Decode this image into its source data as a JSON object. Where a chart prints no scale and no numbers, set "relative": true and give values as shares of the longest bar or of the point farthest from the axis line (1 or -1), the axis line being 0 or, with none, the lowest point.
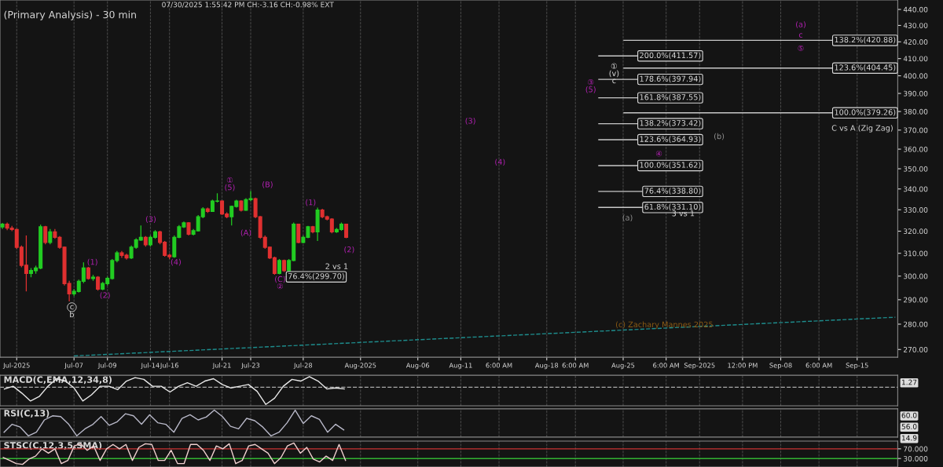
{
  "chart_data": [
    {
      "type": "candlestick",
      "title": "(Primary Analysis) - 30 min",
      "subtitle": "07/30/2025 1:55:42 PM CH:-3.16 CH:-0.98% EXT",
      "log": "y",
      "ylim": [
        267,
        446
      ],
      "yticks": [
        {
          "value": 270,
          "label": "270.00"
        },
        {
          "value": 280,
          "label": "280.00"
        },
        {
          "value": 290,
          "label": "290.00"
        },
        {
          "value": 300,
          "label": "300.00"
        },
        {
          "value": 310,
          "label": "310.00"
        },
        {
          "value": 320,
          "label": "320.00"
        },
        {
          "value": 330,
          "label": "330.00"
        },
        {
          "value": 340,
          "label": "340.00"
        },
        {
          "value": 350,
          "label": "350.00"
        },
        {
          "value": 360,
          "label": "360.00"
        },
        {
          "value": 370,
          "label": "370.00"
        },
        {
          "value": 380,
          "label": "380.00"
        },
        {
          "value": 390,
          "label": "390.00"
        },
        {
          "value": 400,
          "label": "400.00"
        },
        {
          "value": 410,
          "label": "410.00"
        },
        {
          "value": 420,
          "label": "420.00"
        },
        {
          "value": 430,
          "label": "430.00"
        },
        {
          "value": 440,
          "label": "440.00"
        }
      ],
      "grid": "x",
      "categories": [
        null,
        null,
        null,
        "Jul-2025",
        null,
        null,
        null,
        null,
        null,
        null,
        null,
        null,
        null,
        null,
        null,
        "Jul-07",
        null,
        null,
        null,
        null,
        null,
        null,
        "Jul-09",
        null,
        null,
        null,
        null,
        null,
        null,
        null,
        null,
        "Jul-14",
        null,
        null,
        null,
        "Jul-16",
        null,
        null,
        null,
        null,
        null,
        null,
        null,
        null,
        null,
        null,
        "Jul-21",
        null,
        null,
        null,
        null,
        null,
        "Jul-23",
        null,
        null,
        null,
        null,
        null,
        null,
        null,
        null,
        null,
        null,
        "Jul-28",
        null,
        null,
        null,
        null,
        null,
        null,
        null,
        null,
        null,
        null,
        null,
        "Aug-2025",
        null,
        null,
        null,
        null,
        null,
        null,
        null,
        null,
        null,
        null,
        null,
        "Aug-06",
        null,
        null,
        null,
        null,
        null,
        null,
        null,
        null,
        "Aug-11",
        null,
        null,
        null,
        null,
        null,
        null,
        null,
        "6:00 AM",
        null,
        null,
        null,
        null,
        null,
        null,
        null,
        null,
        null,
        "Aug-18",
        null,
        null,
        null,
        null,
        null,
        "6:00 AM",
        null,
        null,
        null,
        null,
        null,
        null,
        null,
        null,
        null,
        "Aug-25",
        null,
        null,
        null,
        null,
        null,
        null,
        null,
        null,
        "6:00 AM",
        null,
        null,
        null,
        null,
        null,
        null,
        "Sep-2025",
        null,
        null,
        null,
        null,
        null,
        null,
        null,
        null,
        "12:00 PM",
        null,
        null,
        null,
        null,
        null,
        null,
        null,
        "Sep-08",
        null,
        null,
        null,
        null,
        null,
        null,
        null,
        "6:00 AM",
        null,
        null,
        null,
        null,
        null,
        null,
        null,
        "Sep-15",
        null,
        null,
        null,
        null,
        null,
        null,
        null,
        null
      ],
      "ohlc": [
        [
          322.0,
          323.8,
          321.0,
          323.2
        ],
        [
          323.2,
          324.0,
          320.5,
          321.4
        ],
        [
          321.4,
          322.5,
          320.0,
          320.8
        ],
        [
          320.8,
          321.2,
          312.0,
          312.7
        ],
        [
          312.7,
          313.5,
          303.8,
          304.7
        ],
        [
          304.7,
          318.0,
          293.5,
          301.2
        ],
        [
          301.2,
          303.5,
          299.5,
          302.4
        ],
        [
          302.4,
          304.5,
          301.0,
          303.5
        ],
        [
          303.5,
          323.0,
          303.0,
          322.0
        ],
        [
          322.0,
          322.5,
          314.0,
          314.9
        ],
        [
          314.9,
          321.0,
          314.0,
          319.7
        ],
        [
          319.7,
          321.0,
          316.5,
          317.2
        ],
        [
          317.2,
          317.8,
          312.0,
          312.7
        ],
        [
          312.7,
          313.0,
          296.0,
          296.8
        ],
        [
          296.8,
          298.0,
          289.3,
          292.5
        ],
        [
          292.5,
          294.5,
          291.5,
          293.5
        ],
        [
          293.5,
          298.5,
          293.0,
          297.8
        ],
        [
          297.8,
          306.0,
          297.0,
          303.5
        ],
        [
          303.5,
          304.0,
          298.5,
          299.0
        ],
        [
          299.0,
          300.5,
          298.0,
          299.5
        ],
        [
          299.5,
          300.0,
          293.8,
          294.5
        ],
        [
          294.5,
          297.5,
          294.0,
          296.8
        ],
        [
          296.8,
          299.8,
          296.0,
          299.0
        ],
        [
          299.0,
          307.5,
          298.5,
          306.8
        ],
        [
          306.8,
          311.0,
          306.0,
          310.2
        ],
        [
          310.2,
          311.0,
          308.0,
          309.1
        ],
        [
          309.1,
          309.8,
          307.2,
          308.0
        ],
        [
          308.0,
          313.5,
          307.5,
          312.7
        ],
        [
          312.7,
          316.8,
          312.0,
          316.0
        ],
        [
          316.0,
          322.6,
          315.5,
          317.2
        ],
        [
          317.2,
          317.8,
          313.0,
          313.8
        ],
        [
          313.8,
          318.0,
          313.0,
          317.2
        ],
        [
          317.2,
          320.5,
          316.5,
          319.7
        ],
        [
          319.7,
          320.2,
          314.0,
          314.9
        ],
        [
          314.9,
          315.5,
          308.5,
          309.1
        ],
        [
          309.1,
          309.8,
          307.5,
          308.5
        ],
        [
          308.5,
          318.0,
          308.0,
          317.2
        ],
        [
          317.2,
          322.8,
          316.8,
          322.0
        ],
        [
          322.0,
          324.5,
          321.5,
          323.8
        ],
        [
          323.8,
          324.2,
          318.0,
          318.6
        ],
        [
          318.6,
          321.0,
          318.0,
          320.2
        ],
        [
          320.2,
          327.5,
          319.8,
          326.7
        ],
        [
          326.7,
          331.2,
          326.0,
          330.4
        ],
        [
          330.4,
          331.0,
          328.5,
          329.2
        ],
        [
          329.2,
          334.8,
          329.0,
          334.1
        ],
        [
          334.1,
          337.9,
          333.5,
          334.1
        ],
        [
          334.1,
          334.5,
          327.5,
          328.0
        ],
        [
          328.0,
          328.8,
          326.0,
          326.7
        ],
        [
          326.7,
          332.0,
          322.6,
          331.6
        ],
        [
          331.6,
          334.8,
          331.0,
          334.1
        ],
        [
          334.1,
          334.5,
          329.2,
          329.8
        ],
        [
          329.8,
          335.5,
          329.5,
          334.8
        ],
        [
          334.8,
          339.0,
          334.0,
          335.3
        ],
        [
          335.3,
          335.8,
          326.0,
          326.7
        ],
        [
          326.7,
          327.0,
          316.5,
          317.2
        ],
        [
          317.2,
          318.0,
          312.0,
          312.7
        ],
        [
          312.7,
          313.0,
          307.5,
          308.0
        ],
        [
          308.0,
          308.5,
          300.6,
          301.2
        ],
        [
          301.2,
          307.5,
          300.8,
          306.8
        ],
        [
          306.8,
          307.2,
          301.8,
          302.4
        ],
        [
          302.4,
          307.5,
          302.0,
          306.8
        ],
        [
          306.8,
          324.0,
          306.5,
          323.2
        ],
        [
          323.2,
          323.5,
          314.5,
          314.9
        ],
        [
          314.9,
          318.0,
          314.5,
          317.2
        ],
        [
          317.2,
          322.5,
          316.8,
          322.0
        ],
        [
          322.0,
          322.5,
          319.0,
          319.7
        ],
        [
          319.7,
          331.0,
          315.5,
          329.8
        ],
        [
          329.8,
          330.5,
          326.0,
          326.7
        ],
        [
          326.7,
          327.2,
          325.0,
          325.6
        ],
        [
          325.6,
          326.0,
          319.0,
          319.7
        ],
        [
          319.7,
          321.5,
          319.2,
          320.8
        ],
        [
          320.8,
          324.0,
          320.2,
          323.2
        ],
        [
          323.2,
          323.5,
          316.8,
          317.2
        ],
        null,
        null,
        null,
        null,
        null,
        null,
        null,
        null,
        null,
        null,
        null,
        null,
        null,
        null,
        null,
        null,
        null,
        null,
        null,
        null,
        null,
        null,
        null,
        null,
        null,
        null,
        null,
        null,
        null,
        null,
        null,
        null,
        null,
        null,
        null,
        null,
        null,
        null,
        null,
        null,
        null,
        null,
        null,
        null,
        null,
        null,
        null,
        null,
        null,
        null,
        null,
        null,
        null,
        null,
        null,
        null,
        null,
        null,
        null,
        null,
        null,
        null,
        null,
        null,
        null,
        null,
        null,
        null,
        null,
        null,
        null,
        null,
        null,
        null,
        null,
        null,
        null,
        null,
        null,
        null,
        null,
        null,
        null,
        null,
        null,
        null,
        null,
        null,
        null,
        null,
        null,
        null,
        null,
        null,
        null,
        null,
        null,
        null,
        null,
        null,
        null,
        null,
        null,
        null,
        null,
        null,
        null,
        null,
        null,
        null,
        null,
        null,
        null,
        null,
        null
      ],
      "series": [
        {
          "type": "line",
          "color": "#1e8c8c",
          "line_style": "dashed",
          "values": [
            null,
            null,
            null,
            null,
            null,
            null,
            null,
            null,
            null,
            null,
            null,
            null,
            null,
            null,
            null,
            267.5,
            null,
            null,
            null,
            null,
            null,
            null,
            null,
            null,
            null,
            null,
            null,
            null,
            null,
            null,
            null,
            null,
            null,
            null,
            null,
            null,
            null,
            null,
            null,
            null,
            null,
            null,
            null,
            null,
            null,
            null,
            null,
            null,
            null,
            null,
            null,
            null,
            null,
            null,
            null,
            null,
            null,
            null,
            null,
            null,
            null,
            null,
            null,
            null,
            null,
            null,
            null,
            null,
            null,
            null,
            null,
            null,
            null,
            null,
            null,
            null,
            null,
            null,
            null,
            null,
            null,
            null,
            null,
            null,
            null,
            null,
            null,
            null,
            null,
            null,
            null,
            null,
            null,
            null,
            null,
            null,
            null,
            null,
            null,
            null,
            null,
            null,
            null,
            null,
            null,
            null,
            null,
            null,
            null,
            null,
            null,
            null,
            null,
            null,
            null,
            null,
            null,
            null,
            null,
            null,
            null,
            null,
            null,
            null,
            null,
            null,
            null,
            null,
            null,
            null,
            null,
            null,
            null,
            null,
            null,
            null,
            null,
            null,
            null,
            null,
            null,
            null,
            null,
            null,
            null,
            null,
            null,
            null,
            null,
            null,
            null,
            null,
            null,
            null,
            null,
            null,
            null,
            null,
            null,
            null,
            null,
            null,
            null,
            null,
            null,
            null,
            null,
            null,
            null,
            null,
            null,
            null,
            null,
            null,
            null,
            null,
            null,
            null,
            null,
            null,
            null,
            null,
            null,
            null,
            null,
            null,
            null,
            282.8
          ]
        }
      ],
      "ref_lines": [
        {
          "axis": "y",
          "value": 299.7,
          "label": "76.4%(299.70)"
        },
        {
          "axis": "y",
          "value": 411.57,
          "label": "200.0%(411.57)"
        },
        {
          "axis": "y",
          "value": 397.94,
          "label": "178.6%(397.94)"
        },
        {
          "axis": "y",
          "value": 387.55,
          "label": "161.8%(387.55)"
        },
        {
          "axis": "y",
          "value": 373.42,
          "label": "138.2%(373.42)"
        },
        {
          "axis": "y",
          "value": 364.93,
          "label": "123.6%(364.93)"
        },
        {
          "axis": "y",
          "value": 351.62,
          "label": "100.0%(351.62)"
        },
        {
          "axis": "y",
          "value": 338.8,
          "label": "76.4%(338.80)"
        },
        {
          "axis": "y",
          "value": 331.1,
          "label": "61.8%(331.10)"
        },
        {
          "axis": "y",
          "value": 420.88,
          "label": "138.2%(420.88)"
        },
        {
          "axis": "y",
          "value": 404.45,
          "label": "123.6%(404.45)"
        },
        {
          "axis": "y",
          "value": 379.26,
          "label": "100.0%(379.26)"
        }
      ],
      "annotations": [
        "c",
        "b",
        "(1)",
        "(2)",
        "(3)",
        "(4)",
        "①",
        "(5)",
        "(A)",
        "(B)",
        "(C)",
        "②",
        "(1)",
        "(2)",
        "2 vs 1",
        "(3)",
        "(4)",
        "③",
        "(5)",
        "①",
        "(v)",
        "c",
        "(a)",
        "④",
        "3 vs 1",
        "(b)",
        "(a)",
        "c",
        "⑤",
        "C vs A (Zig Zag)",
        "(c) Zachary Mannes 2025"
      ]
    },
    {
      "type": "line",
      "title": "MACD(C,EMA,12,34,8)",
      "relative": true,
      "tick_labels": false,
      "grid": "x",
      "ref_lines": [
        {
          "axis": "y",
          "value": 0,
          "color": "#aaaaaa",
          "line_style": "dashed"
        }
      ],
      "categories": [
        null,
        null,
        null,
        null,
        null,
        null,
        null,
        null,
        null,
        null,
        null,
        null,
        null,
        null,
        null,
        null,
        null,
        null,
        null,
        null,
        null,
        null,
        null,
        null,
        null,
        null,
        null,
        null,
        null,
        null,
        null,
        null,
        null,
        null,
        null,
        null,
        null,
        null,
        null,
        null,
        null,
        null,
        null,
        null,
        null,
        null,
        null,
        null,
        null,
        null,
        null,
        null,
        null,
        null,
        null,
        null,
        null,
        null,
        null,
        null,
        null,
        null,
        null,
        null,
        null,
        null,
        null,
        null,
        null,
        null,
        null,
        null,
        null,
        null,
        null,
        null,
        null,
        null,
        null,
        null,
        null,
        null,
        null,
        null,
        null,
        null,
        null,
        null,
        null,
        null,
        null,
        null,
        null,
        null,
        null,
        null,
        null,
        null,
        null,
        null,
        null,
        null,
        null
      ],
      "annotations": [
        "1.27"
      ],
      "series": [
        {
          "color": "#e8e8e8",
          "values": [
            -0.1,
            0.06,
            -0.34,
            -0.8,
            -0.54,
            0.06,
            0.5,
            0.36,
            -0.04,
            -0.8,
            -0.44,
            0.06,
            0.06,
            -0.14,
            0.36,
            0.56,
            0.46,
            0.06,
            0.06,
            -0.28,
            0.06,
            0.26,
            0.06,
            0.36,
            0.5,
            0.16,
            -0.04,
            0.06,
            0.16,
            -0.24,
            -1,
            -0.64,
            0.06,
            0.46,
            0.36,
            0.62,
            0.36,
            -0.1,
            -0.04,
            -0.1,
            null,
            null,
            null,
            null,
            null,
            null,
            null,
            null,
            null,
            null,
            null,
            null,
            null,
            null,
            null,
            null,
            null,
            null,
            null,
            null,
            null,
            null,
            null,
            null,
            null,
            null,
            null,
            null,
            null,
            null,
            null,
            null,
            null,
            null,
            null,
            null,
            null,
            null,
            null,
            null,
            null,
            null,
            null,
            null,
            null,
            null,
            null,
            null,
            null,
            null,
            null,
            null,
            null,
            null,
            null,
            null,
            null,
            null,
            null,
            null,
            null,
            null,
            null
          ]
        }
      ]
    },
    {
      "type": "line",
      "title": "RSI(C,13)",
      "relative": true,
      "tick_labels": false,
      "grid": "x",
      "categories": [
        null,
        null,
        null,
        null,
        null,
        null,
        null,
        null,
        null,
        null,
        null,
        null,
        null,
        null,
        null,
        null,
        null,
        null,
        null,
        null,
        null,
        null,
        null,
        null,
        null,
        null,
        null,
        null,
        null,
        null,
        null,
        null,
        null,
        null,
        null,
        null,
        null,
        null,
        null,
        null,
        null,
        null,
        null,
        null,
        null,
        null,
        null,
        null,
        null,
        null,
        null,
        null,
        null,
        null,
        null,
        null,
        null,
        null,
        null,
        null,
        null,
        null,
        null,
        null,
        null,
        null,
        null,
        null,
        null,
        null,
        null,
        null,
        null,
        null,
        null,
        null,
        null,
        null,
        null,
        null,
        null,
        null,
        null,
        null,
        null,
        null,
        null,
        null,
        null,
        null,
        null,
        null,
        null,
        null,
        null,
        null,
        null,
        null,
        null,
        null,
        null,
        null,
        null,
        null,
        null,
        null,
        null,
        null,
        null,
        null,
        null
      ],
      "annotations": [
        "60.0",
        "56.0",
        "14.9"
      ],
      "series": [
        {
          "color": "#b8b8c8",
          "values": [
            0.14,
            0.45,
            0.34,
            0,
            0.14,
            0.62,
            0.78,
            0.75,
            0.45,
            0,
            0.27,
            0.45,
            0.75,
            0.41,
            0.55,
            0.86,
            0.78,
            0.45,
            0.82,
            0.51,
            0.45,
            0.14,
            0.68,
            0.82,
            0.62,
            0.73,
            1,
            0.75,
            0.37,
            0.27,
            0.68,
            0.59,
            0.34,
            0,
            0.14,
            0.51,
            1,
            0.48,
            0.78,
            0.64,
            0.14,
            0.45,
            0.23,
            null,
            null,
            null,
            null,
            null,
            null,
            null,
            null,
            null,
            null,
            null,
            null,
            null,
            null,
            null,
            null,
            null,
            null,
            null,
            null,
            null,
            null,
            null,
            null,
            null,
            null,
            null,
            null,
            null,
            null,
            null,
            null,
            null,
            null,
            null,
            null,
            null,
            null,
            null,
            null,
            null,
            null,
            null,
            null,
            null,
            null,
            null,
            null,
            null,
            null,
            null,
            null,
            null,
            null,
            null,
            null,
            null,
            null,
            null,
            null,
            null,
            null,
            null,
            null,
            null,
            null,
            null,
            null
          ]
        }
      ]
    },
    {
      "type": "line",
      "title": "STSC(C,12,3,5,SMA)",
      "tick_labels": "y",
      "grid": "x",
      "categories": [
        null,
        null,
        null,
        null,
        null,
        null,
        null,
        null,
        null,
        null,
        null,
        null,
        null,
        null,
        null,
        null,
        null,
        null,
        null,
        null,
        null,
        null,
        null,
        null,
        null,
        null,
        null,
        null,
        null,
        null,
        null,
        null,
        null,
        null,
        null,
        null,
        null,
        null,
        null,
        null,
        null,
        null,
        null,
        null,
        null,
        null,
        null,
        null,
        null,
        null,
        null,
        null,
        null,
        null,
        null,
        null,
        null,
        null,
        null,
        null,
        null,
        null,
        null,
        null,
        null,
        null,
        null,
        null,
        null,
        null,
        null,
        null,
        null,
        null,
        null,
        null,
        null,
        null,
        null,
        null,
        null,
        null,
        null,
        null,
        null,
        null,
        null,
        null,
        null,
        null,
        null,
        null,
        null,
        null,
        null,
        null,
        null,
        null,
        null,
        null,
        null,
        null,
        null,
        null,
        null,
        null,
        null,
        null,
        null,
        null,
        null,
        null,
        null,
        null,
        null,
        null,
        null,
        null,
        null,
        null,
        null,
        null,
        null,
        null,
        null,
        null,
        null,
        null,
        null,
        null,
        null,
        null,
        null,
        null,
        null,
        null,
        null,
        null,
        null
      ],
      "ylim": [
        -5,
        102
      ],
      "yticks": [
        {
          "value": 30,
          "label": "30.000"
        },
        {
          "value": 70,
          "label": "70.000"
        }
      ],
      "ref_lines": [
        {
          "axis": "y",
          "value": 70,
          "color": "#c83232"
        },
        {
          "axis": "y",
          "value": 30,
          "color": "#32b432"
        }
      ],
      "series": [
        {
          "color": "#f0d0d0",
          "values": [
            34,
            22,
            9,
            6,
            28,
            40,
            70,
            52,
            70,
            9,
            22,
            82,
            91,
            64,
            82,
            22,
            70,
            88,
            70,
            88,
            22,
            76,
            91,
            88,
            22,
            22,
            64,
            9,
            9,
            88,
            88,
            64,
            22,
            82,
            70,
            91,
            9,
            22,
            82,
            88,
            70,
            52,
            9,
            34,
            82,
            94,
            52,
            76,
            28,
            16,
            40,
            22,
            88,
            22,
            null,
            null,
            null,
            null,
            null,
            null,
            null,
            null,
            null,
            null,
            null,
            null,
            null,
            null,
            null,
            null,
            null,
            null,
            null,
            null,
            null,
            null,
            null,
            null,
            null,
            null,
            null,
            null,
            null,
            null,
            null,
            null,
            null,
            null,
            null,
            null,
            null,
            null,
            null,
            null,
            null,
            null,
            null,
            null,
            null,
            null,
            null,
            null,
            null,
            null,
            null,
            null,
            null,
            null,
            null,
            null,
            null,
            null,
            null,
            null,
            null,
            null,
            null,
            null,
            null,
            null,
            null,
            null,
            null,
            null,
            null,
            null,
            null,
            null,
            null,
            null,
            null,
            null,
            null,
            null,
            null,
            null,
            null,
            null,
            null
          ]
        }
      ]
    }
  ]
}
